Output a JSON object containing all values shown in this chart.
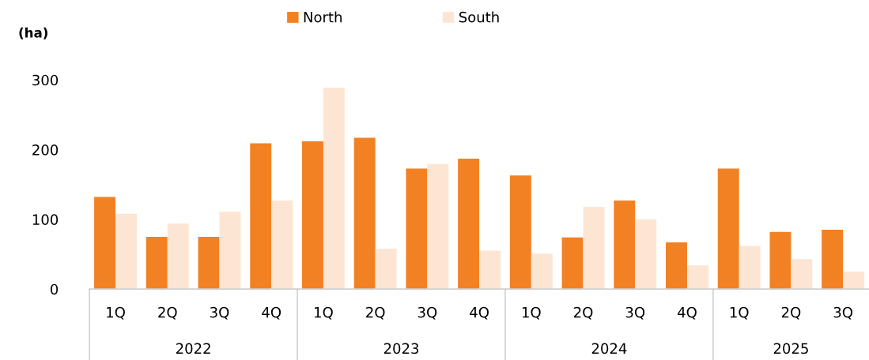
{
  "chart_data": {
    "type": "bar",
    "ylabel": "(ha)",
    "categories": [
      "1Q",
      "2Q",
      "3Q",
      "4Q",
      "1Q",
      "2Q",
      "3Q",
      "4Q",
      "1Q",
      "2Q",
      "3Q",
      "4Q",
      "1Q",
      "2Q",
      "3Q"
    ],
    "annotations": [
      "2022",
      "2023",
      "2024",
      "2025"
    ],
    "series": [
      {
        "name": "North",
        "color": "#f28123",
        "values": [
          132,
          75,
          75,
          209,
          212,
          217,
          173,
          187,
          163,
          74,
          127,
          67,
          173,
          82,
          85
        ]
      },
      {
        "name": "South",
        "color": "#fde5d4",
        "values": [
          108,
          94,
          111,
          127,
          289,
          58,
          179,
          55,
          51,
          118,
          100,
          34,
          62,
          43,
          25
        ]
      }
    ],
    "ylim": [
      0,
      300
    ],
    "yticks": [
      0,
      100,
      200,
      300
    ],
    "legend": "top"
  }
}
